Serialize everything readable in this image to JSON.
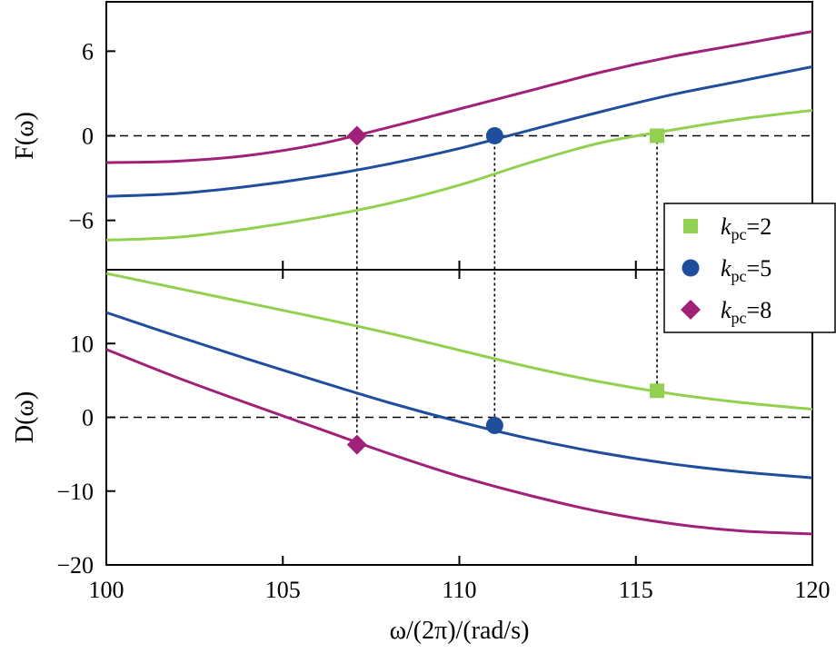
{
  "chart_data": [
    {
      "type": "line",
      "panel": "top",
      "ylabel": "F(ω)",
      "xlim": [
        100,
        120
      ],
      "ylim": [
        -9.5,
        9.5
      ],
      "yticks": [
        6,
        0,
        -6
      ],
      "ytick_labels": [
        "6",
        "0",
        "−6"
      ],
      "reference_line": 0,
      "series": [
        {
          "name": "k_pc=2",
          "color": "#92d050",
          "marker": "square",
          "x": [
            100,
            102,
            104,
            106,
            108,
            110,
            112,
            114,
            116,
            118,
            120
          ],
          "y": [
            -7.4,
            -7.2,
            -6.6,
            -5.8,
            -4.8,
            -3.5,
            -1.9,
            -0.5,
            0.4,
            1.2,
            1.8
          ],
          "marker_point": [
            115.6,
            0
          ]
        },
        {
          "name": "k_pc=5",
          "color": "#1f4e9c",
          "marker": "circle",
          "x": [
            100,
            102,
            104,
            106,
            108,
            110,
            112,
            114,
            116,
            118,
            120
          ],
          "y": [
            -4.3,
            -4.1,
            -3.6,
            -2.9,
            -2.0,
            -0.9,
            0.4,
            1.7,
            2.9,
            3.9,
            4.9
          ],
          "marker_point": [
            111,
            0
          ]
        },
        {
          "name": "k_pc=8",
          "color": "#a0207a",
          "marker": "diamond",
          "x": [
            100,
            102,
            104,
            106,
            108,
            110,
            112,
            114,
            116,
            118,
            120
          ],
          "y": [
            -1.9,
            -1.8,
            -1.4,
            -0.6,
            0.6,
            1.9,
            3.2,
            4.5,
            5.6,
            6.5,
            7.4
          ],
          "marker_point": [
            107.1,
            0
          ]
        }
      ]
    },
    {
      "type": "line",
      "panel": "bottom",
      "ylabel": "D(ω)",
      "xlabel": "ω/(2π)/(rad/s)",
      "xlim": [
        100,
        120
      ],
      "ylim": [
        -20,
        20
      ],
      "xticks": [
        100,
        105,
        110,
        115,
        120
      ],
      "xtick_labels": [
        "100",
        "105",
        "110",
        "115",
        "120"
      ],
      "yticks": [
        10,
        0,
        -10,
        -20
      ],
      "ytick_labels": [
        "10",
        "0",
        "−10",
        "−20"
      ],
      "reference_line": 0,
      "series": [
        {
          "name": "k_pc=2",
          "color": "#92d050",
          "marker": "square",
          "x": [
            100,
            102,
            104,
            106,
            108,
            110,
            112,
            114,
            116,
            118,
            120
          ],
          "y": [
            19.5,
            17.5,
            15.5,
            13.5,
            11.4,
            9.1,
            6.8,
            4.8,
            3.2,
            2.0,
            1.1
          ],
          "marker_point": [
            115.6,
            3.6
          ]
        },
        {
          "name": "k_pc=5",
          "color": "#1f4e9c",
          "marker": "circle",
          "x": [
            100,
            102,
            104,
            106,
            108,
            110,
            112,
            114,
            116,
            118,
            120
          ],
          "y": [
            14.2,
            11.0,
            7.9,
            4.9,
            2.0,
            -0.6,
            -2.9,
            -4.8,
            -6.3,
            -7.4,
            -8.2
          ],
          "marker_point": [
            111,
            -1.1
          ]
        },
        {
          "name": "k_pc=8",
          "color": "#a0207a",
          "marker": "diamond",
          "x": [
            100,
            102,
            104,
            106,
            108,
            110,
            112,
            114,
            116,
            118,
            120
          ],
          "y": [
            9.2,
            5.4,
            1.9,
            -1.5,
            -4.9,
            -8.0,
            -10.6,
            -12.8,
            -14.4,
            -15.4,
            -15.8
          ],
          "marker_point": [
            107.1,
            -3.7
          ]
        }
      ]
    }
  ],
  "legend": {
    "placement": "right, centered on panel divider",
    "entries": [
      {
        "prefix": "k",
        "sub": "pc",
        "suffix": "=2",
        "color": "#92d050",
        "marker": "square"
      },
      {
        "prefix": "k",
        "sub": "pc",
        "suffix": "=5",
        "color": "#1f4e9c",
        "marker": "circle"
      },
      {
        "prefix": "k",
        "sub": "pc",
        "suffix": "=8",
        "color": "#a0207a",
        "marker": "diamond"
      }
    ]
  }
}
